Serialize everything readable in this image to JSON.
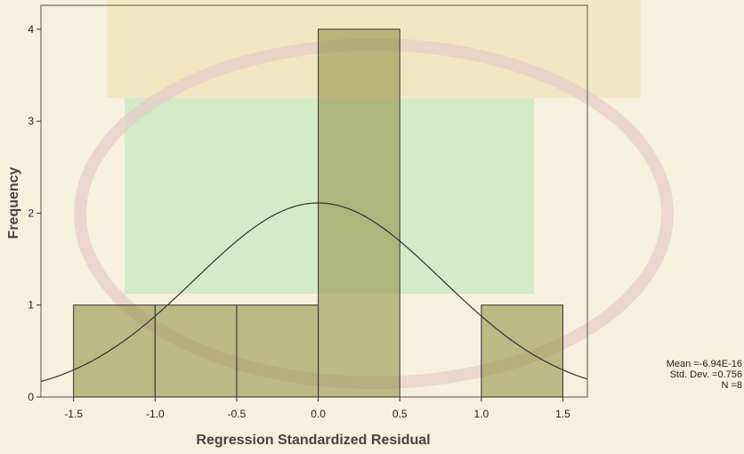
{
  "chart_data": {
    "type": "histogram",
    "x_label": "Regression Standardized Residual",
    "y_label": "Frequency",
    "bins": [
      -1.5,
      -1.0,
      -0.5,
      0.0,
      0.5,
      1.0,
      1.5
    ],
    "values": [
      1,
      1,
      1,
      4,
      0,
      1
    ],
    "color": "#8c8a3c",
    "xlim": [
      -1.7,
      1.65
    ],
    "ylim": [
      0,
      4.26
    ],
    "xticks": [
      -1.5,
      {
        "value": -1.0,
        "label": "-1.0"
      },
      -0.5,
      {
        "value": 0.0,
        "label": "0.0"
      },
      0.5,
      {
        "value": 1.0,
        "label": "1.0"
      },
      1.5
    ],
    "yticks": [
      0,
      1,
      2,
      3,
      4
    ],
    "stats": [
      {
        "value": -6.94e-16,
        "label": "Mean =-6.94E-16"
      },
      {
        "value": 0.756,
        "label": "Std. Dev. =0.756"
      },
      {
        "value": 8,
        "label": "N =8"
      }
    ]
  }
}
